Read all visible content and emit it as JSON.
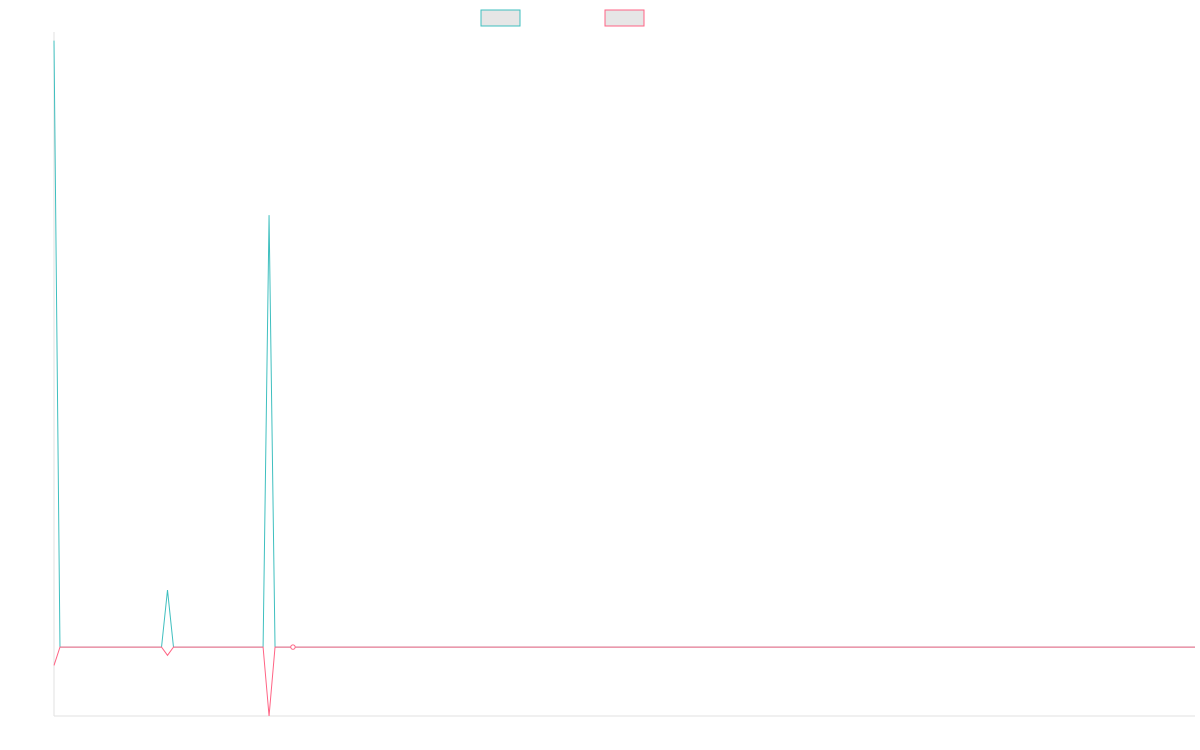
{
  "chart_data": {
    "type": "line",
    "title": "",
    "xlabel": "",
    "ylabel": "",
    "x": [
      0,
      1,
      2,
      3,
      4,
      5,
      6,
      7,
      8,
      9,
      10,
      11,
      12,
      13,
      14,
      15,
      16,
      17,
      18,
      19,
      20,
      21,
      22,
      23,
      24,
      25,
      26,
      27,
      28,
      29,
      30,
      31,
      32,
      33,
      34,
      35,
      36,
      37,
      38,
      39,
      40,
      41,
      42,
      43,
      44,
      45,
      46,
      47,
      48,
      49,
      50,
      51,
      52,
      53,
      54,
      55,
      56,
      57,
      58,
      59,
      60,
      61,
      62,
      63,
      64,
      65,
      66,
      67,
      68,
      69,
      70,
      71,
      72,
      73,
      74,
      75,
      76,
      77,
      78,
      79,
      80,
      81,
      82,
      83,
      84,
      85,
      86,
      87,
      88,
      89,
      90,
      91,
      92,
      93,
      94,
      95,
      96,
      97,
      98,
      99,
      100,
      101,
      102,
      103,
      104,
      105,
      106,
      107,
      108,
      109,
      110,
      111,
      112,
      113,
      114,
      115,
      116,
      117,
      118,
      119,
      120,
      121,
      122,
      123,
      124,
      125,
      126,
      127,
      128,
      129,
      130,
      131,
      132,
      133,
      134,
      135,
      136,
      137,
      138,
      139,
      140,
      141,
      142,
      143,
      144,
      145,
      146,
      147,
      148,
      149,
      150,
      151,
      152,
      153,
      154,
      155,
      156,
      157,
      158,
      159,
      160,
      161,
      162,
      163,
      164,
      165,
      166,
      167,
      168,
      169,
      170,
      171,
      172,
      173,
      174,
      175,
      176,
      177,
      178,
      179,
      180,
      181,
      182,
      183,
      184,
      185,
      186,
      187,
      188,
      189,
      190,
      191
    ],
    "xlim": [
      0,
      191
    ],
    "ylim": [
      -7.5,
      66.5
    ],
    "grid": false,
    "legend_position": "top",
    "series": [
      {
        "name": "",
        "color": "#3fbfbf",
        "values": [
          66,
          0,
          0,
          0,
          0,
          0,
          0,
          0,
          0,
          0,
          0,
          0,
          0,
          0,
          0,
          0,
          0,
          0,
          0,
          6.2,
          0,
          0,
          0,
          0,
          0,
          0,
          0,
          0,
          0,
          0,
          0,
          0,
          0,
          0,
          0,
          0,
          47,
          0,
          0,
          0,
          0,
          0,
          0,
          0,
          0,
          0,
          0,
          0,
          0,
          0,
          0,
          0,
          0,
          0,
          0,
          0,
          0,
          0,
          0,
          0,
          0,
          0,
          0,
          0,
          0,
          0,
          0,
          0,
          0,
          0,
          0,
          0,
          0,
          0,
          0,
          0,
          0,
          0,
          0,
          0,
          0,
          0,
          0,
          0,
          0,
          0,
          0,
          0,
          0,
          0,
          0,
          0,
          0,
          0,
          0,
          0,
          0,
          0,
          0,
          0,
          0,
          0,
          0,
          0,
          0,
          0,
          0,
          0,
          0,
          0,
          0,
          0,
          0,
          0,
          0,
          0,
          0,
          0,
          0,
          0,
          0,
          0,
          0,
          0,
          0,
          0,
          0,
          0,
          0,
          0,
          0,
          0,
          0,
          0,
          0,
          0,
          0,
          0,
          0,
          0,
          0,
          0,
          0,
          0,
          0,
          0,
          0,
          0,
          0,
          0,
          0,
          0,
          0,
          0,
          0,
          0,
          0,
          0,
          0,
          0,
          0,
          0,
          0,
          0,
          0,
          0,
          0,
          0,
          0,
          0,
          0,
          0,
          0,
          0,
          0,
          0,
          0,
          0,
          0,
          0,
          0,
          0,
          0,
          0,
          0,
          0,
          0,
          0,
          0,
          0,
          0,
          0
        ]
      },
      {
        "name": "",
        "color": "#ff6384",
        "values": [
          -2,
          0,
          0,
          0,
          0,
          0,
          0,
          0,
          0,
          0,
          0,
          0,
          0,
          0,
          0,
          0,
          0,
          0,
          0,
          -0.9,
          0,
          0,
          0,
          0,
          0,
          0,
          0,
          0,
          0,
          0,
          0,
          0,
          0,
          0,
          0,
          0,
          -7.5,
          0,
          0,
          0,
          0,
          0,
          0,
          0,
          0,
          0,
          0,
          0,
          0,
          0,
          0,
          0,
          0,
          0,
          0,
          0,
          0,
          0,
          0,
          0,
          0,
          0,
          0,
          0,
          0,
          0,
          0,
          0,
          0,
          0,
          0,
          0,
          0,
          0,
          0,
          0,
          0,
          0,
          0,
          0,
          0,
          0,
          0,
          0,
          0,
          0,
          0,
          0,
          0,
          0,
          0,
          0,
          0,
          0,
          0,
          0,
          0,
          0,
          0,
          0,
          0,
          0,
          0,
          0,
          0,
          0,
          0,
          0,
          0,
          0,
          0,
          0,
          0,
          0,
          0,
          0,
          0,
          0,
          0,
          0,
          0,
          0,
          0,
          0,
          0,
          0,
          0,
          0,
          0,
          0,
          0,
          0,
          0,
          0,
          0,
          0,
          0,
          0,
          0,
          0,
          0,
          0,
          0,
          0,
          0,
          0,
          0,
          0,
          0,
          0,
          0,
          0,
          0,
          0,
          0,
          0,
          0,
          0,
          0,
          0,
          0,
          0,
          0,
          0,
          0,
          0,
          0,
          0,
          0,
          0,
          0,
          0,
          0,
          0,
          0,
          0,
          0,
          0,
          0,
          0,
          0,
          0,
          0,
          0,
          0,
          0,
          0,
          0,
          0,
          0,
          0,
          0
        ]
      }
    ]
  }
}
